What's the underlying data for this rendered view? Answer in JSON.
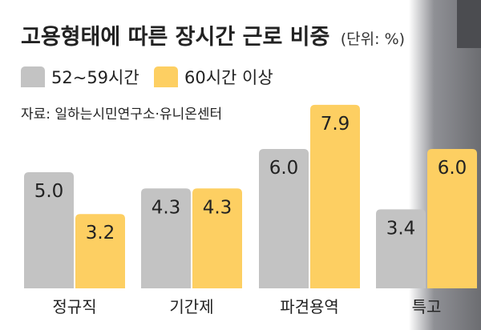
{
  "title": "고용형태에 따른 장시간 근로 비중",
  "unit": "(단위: %)",
  "source": "자료: 일하는시민연구소·유니온센터",
  "colors": {
    "gray": "#c3c3c3",
    "yellow": "#fdcf62",
    "text": "#222222"
  },
  "chart_data": {
    "type": "bar",
    "categories": [
      "정규직",
      "기간제",
      "파견용역",
      "특고"
    ],
    "series": [
      {
        "name": "52~59시간",
        "values": [
          5.0,
          4.3,
          6.0,
          3.4
        ]
      },
      {
        "name": "60시간 이상",
        "values": [
          3.2,
          4.3,
          7.9,
          6.0
        ]
      }
    ],
    "legend_position": "top-left",
    "grid": false
  }
}
